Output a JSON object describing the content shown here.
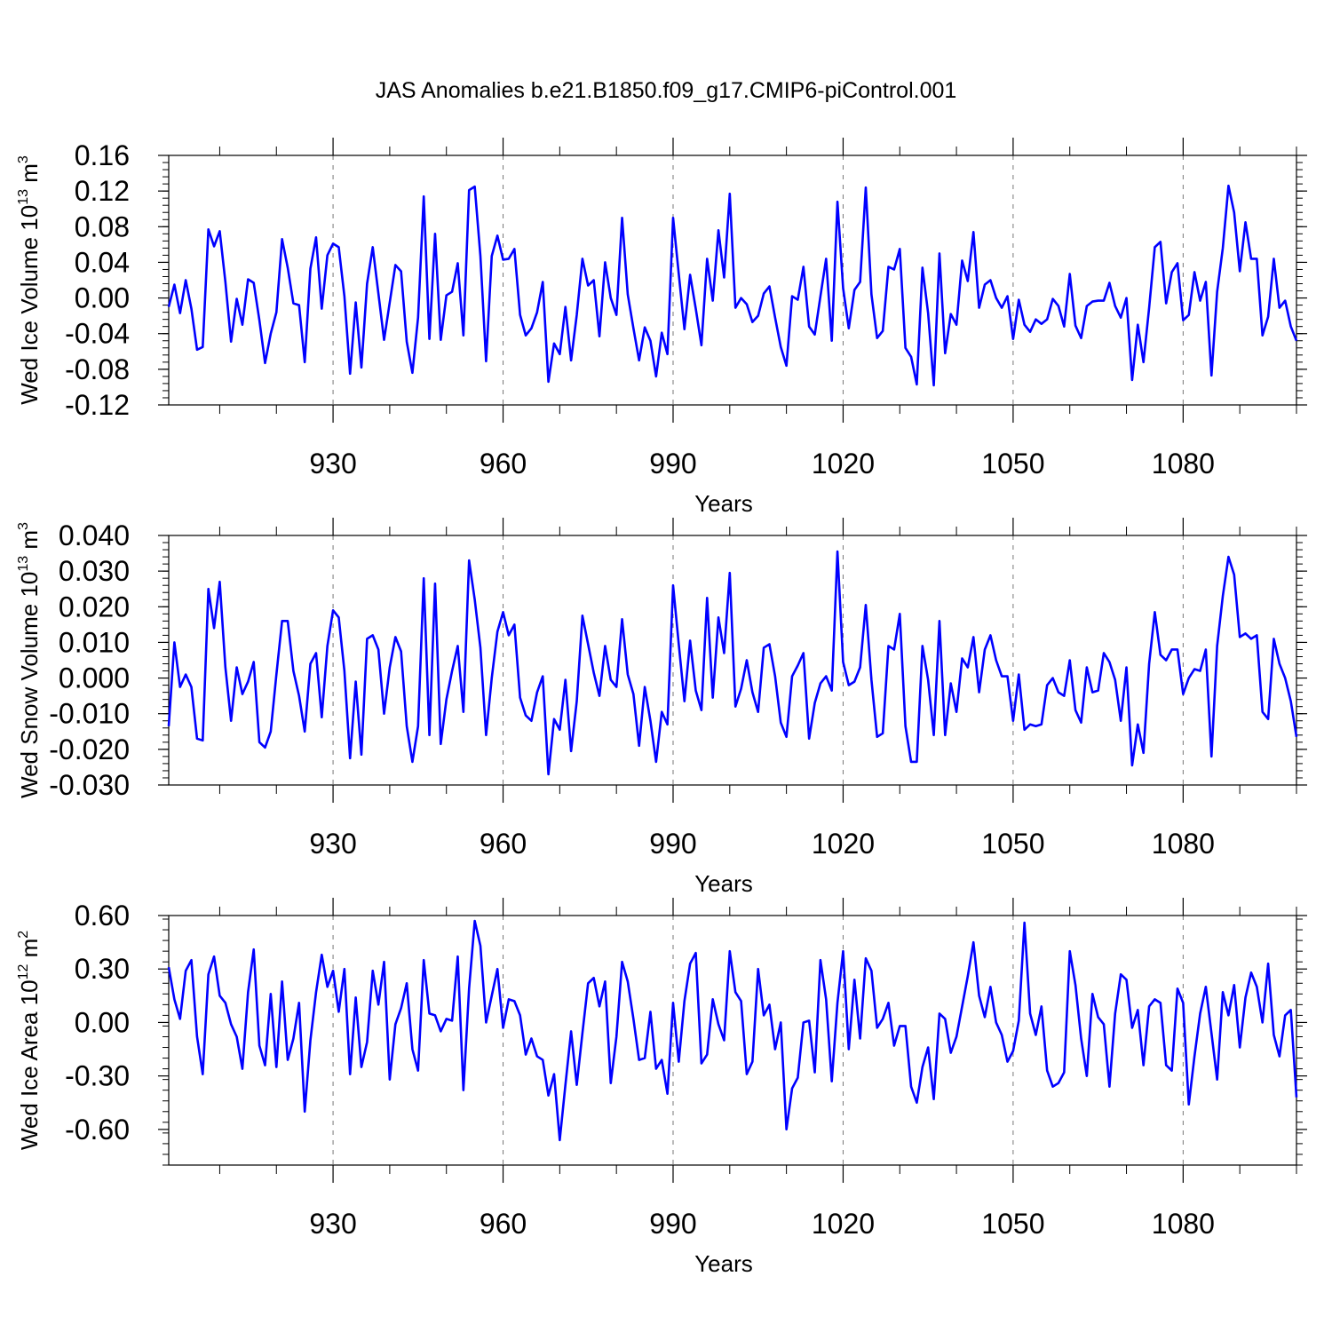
{
  "figure": {
    "title": "JAS Anomalies b.e21.B1850.f09_g17.CMIP6-piControl.001",
    "line_color": "#0000ff",
    "grid_color": "#777777"
  },
  "chart_data": [
    {
      "type": "line",
      "name": "ice-volume",
      "ylabel": "Wed Ice Volume 10",
      "ylabel_exp": "13",
      "ylabel_unit": " m",
      "ylabel_unit_exp": "3",
      "xlabel": "Years",
      "xlim": [
        901,
        1100
      ],
      "ylim": [
        -0.12,
        0.16
      ],
      "yticks": [
        -0.12,
        -0.08,
        -0.04,
        0.0,
        0.04,
        0.08,
        0.12,
        0.16
      ],
      "ytick_labels": [
        "-0.12",
        "-0.08",
        "-0.04",
        "0.00",
        "0.04",
        "0.08",
        "0.12",
        "0.16"
      ],
      "xticks": [
        930,
        960,
        990,
        1020,
        1050,
        1080
      ],
      "xtick_labels": [
        "930",
        "960",
        "990",
        "1020",
        "1050",
        "1080"
      ],
      "x_start": 901,
      "values": [
        -0.01,
        0.015,
        -0.017,
        0.02,
        -0.012,
        -0.058,
        -0.055,
        0.077,
        0.058,
        0.075,
        0.018,
        -0.049,
        -0.001,
        -0.03,
        0.021,
        0.017,
        -0.025,
        -0.073,
        -0.04,
        -0.016,
        0.066,
        0.034,
        -0.006,
        -0.008,
        -0.072,
        0.033,
        0.068,
        -0.012,
        0.048,
        0.061,
        0.057,
        0.002,
        -0.085,
        -0.005,
        -0.078,
        0.016,
        0.057,
        0.005,
        -0.047,
        -0.005,
        0.037,
        0.03,
        -0.049,
        -0.084,
        -0.022,
        0.114,
        -0.046,
        0.072,
        -0.047,
        0.003,
        0.007,
        0.039,
        -0.042,
        0.121,
        0.125,
        0.047,
        -0.071,
        0.047,
        0.07,
        0.043,
        0.044,
        0.055,
        -0.019,
        -0.042,
        -0.034,
        -0.016,
        0.018,
        -0.094,
        -0.051,
        -0.063,
        -0.01,
        -0.07,
        -0.019,
        0.044,
        0.014,
        0.02,
        -0.043,
        0.04,
        0.0,
        -0.019,
        0.09,
        0.004,
        -0.034,
        -0.07,
        -0.033,
        -0.048,
        -0.088,
        -0.039,
        -0.063,
        0.09,
        0.027,
        -0.035,
        0.026,
        -0.012,
        -0.053,
        0.044,
        -0.003,
        0.076,
        0.023,
        0.117,
        -0.011,
        0.0,
        -0.007,
        -0.027,
        -0.02,
        0.005,
        0.013,
        -0.022,
        -0.055,
        -0.076,
        0.002,
        -0.002,
        0.035,
        -0.032,
        -0.041,
        0.002,
        0.044,
        -0.048,
        0.108,
        0.011,
        -0.034,
        0.009,
        0.018,
        0.124,
        0.004,
        -0.045,
        -0.037,
        0.035,
        0.032,
        0.055,
        -0.056,
        -0.066,
        -0.097,
        0.034,
        -0.017,
        -0.098,
        0.05,
        -0.062,
        -0.018,
        -0.03,
        0.042,
        0.019,
        0.074,
        -0.011,
        0.015,
        0.02,
        0.0,
        -0.011,
        0.002,
        -0.046,
        -0.002,
        -0.03,
        -0.038,
        -0.024,
        -0.029,
        -0.024,
        -0.001,
        -0.009,
        -0.032,
        0.027,
        -0.031,
        -0.045,
        -0.009,
        -0.004,
        -0.003,
        -0.003,
        0.017,
        -0.009,
        -0.022,
        0.0,
        -0.092,
        -0.03,
        -0.072,
        -0.011,
        0.057,
        0.063,
        -0.006,
        0.029,
        0.039,
        -0.025,
        -0.019,
        0.029,
        -0.003,
        0.018,
        -0.087,
        0.007,
        0.056,
        0.126,
        0.096,
        0.03,
        0.085,
        0.044,
        0.044,
        -0.042,
        -0.021,
        0.044,
        -0.011,
        -0.003,
        -0.032,
        -0.048
      ]
    },
    {
      "type": "line",
      "name": "snow-volume",
      "ylabel": "Wed Snow Volume 10",
      "ylabel_exp": "13",
      "ylabel_unit": " m",
      "ylabel_unit_exp": "3",
      "xlabel": "Years",
      "xlim": [
        901,
        1100
      ],
      "ylim": [
        -0.03,
        0.04
      ],
      "yticks": [
        -0.03,
        -0.02,
        -0.01,
        0.0,
        0.01,
        0.02,
        0.03,
        0.04
      ],
      "ytick_labels": [
        "-0.030",
        "-0.020",
        "-0.010",
        "0.000",
        "0.010",
        "0.020",
        "0.030",
        "0.040"
      ],
      "xticks": [
        930,
        960,
        990,
        1020,
        1050,
        1080
      ],
      "xtick_labels": [
        "930",
        "960",
        "990",
        "1020",
        "1050",
        "1080"
      ],
      "x_start": 901,
      "values": [
        -0.0135,
        0.01,
        -0.0025,
        0.001,
        -0.0025,
        -0.017,
        -0.0175,
        0.025,
        0.014,
        0.027,
        0.003,
        -0.012,
        0.003,
        -0.0045,
        -0.001,
        0.0045,
        -0.018,
        -0.0195,
        -0.015,
        0.001,
        0.016,
        0.016,
        0.002,
        -0.005,
        -0.015,
        0.004,
        0.007,
        -0.011,
        0.009,
        0.019,
        0.017,
        0.002,
        -0.0225,
        -0.001,
        -0.0215,
        0.011,
        0.012,
        0.008,
        -0.01,
        0.003,
        0.0115,
        0.0075,
        -0.0135,
        -0.0235,
        -0.0135,
        0.028,
        -0.016,
        0.0265,
        -0.0185,
        -0.006,
        0.002,
        0.009,
        -0.0095,
        0.033,
        0.022,
        0.0085,
        -0.016,
        0.0,
        0.013,
        0.0185,
        0.012,
        0.015,
        -0.0055,
        -0.0105,
        -0.012,
        -0.004,
        0.0005,
        -0.027,
        -0.0115,
        -0.0145,
        -0.0005,
        -0.0205,
        -0.0065,
        0.0175,
        0.0095,
        0.0015,
        -0.005,
        0.009,
        -0.0005,
        -0.0025,
        0.0165,
        0.001,
        -0.0045,
        -0.019,
        -0.0025,
        -0.012,
        -0.0235,
        -0.0095,
        -0.013,
        0.026,
        0.0095,
        -0.0065,
        0.0105,
        -0.0035,
        -0.009,
        0.0225,
        -0.0055,
        0.017,
        0.007,
        0.0295,
        -0.008,
        -0.003,
        0.005,
        -0.004,
        -0.0095,
        0.0085,
        0.0095,
        0.0005,
        -0.0125,
        -0.0165,
        0.0005,
        0.0035,
        0.007,
        -0.017,
        -0.007,
        -0.0015,
        0.0005,
        -0.0035,
        0.0355,
        0.0045,
        -0.002,
        -0.001,
        0.003,
        0.0205,
        -0.0005,
        -0.0165,
        -0.0155,
        0.009,
        0.008,
        0.018,
        -0.0135,
        -0.0235,
        -0.0235,
        0.009,
        -0.0005,
        -0.016,
        0.016,
        -0.016,
        -0.0015,
        -0.0095,
        0.0055,
        0.003,
        0.0115,
        -0.004,
        0.008,
        0.012,
        0.005,
        0.0005,
        0.0005,
        -0.012,
        0.001,
        -0.0145,
        -0.013,
        -0.0135,
        -0.013,
        -0.002,
        0.0,
        -0.004,
        -0.005,
        0.005,
        -0.009,
        -0.0125,
        0.003,
        -0.004,
        -0.0035,
        0.007,
        0.0045,
        -0.0005,
        -0.012,
        0.003,
        -0.0245,
        -0.013,
        -0.021,
        0.004,
        0.0185,
        0.0065,
        0.005,
        0.008,
        0.008,
        -0.0045,
        0.0,
        0.0025,
        0.002,
        0.008,
        -0.022,
        0.009,
        0.023,
        0.034,
        0.029,
        0.0115,
        0.0125,
        0.011,
        0.012,
        -0.0095,
        -0.0115,
        0.011,
        0.004,
        0.0,
        -0.0065,
        -0.0165
      ]
    },
    {
      "type": "line",
      "name": "ice-area",
      "ylabel": "Wed Ice Area 10",
      "ylabel_exp": "12",
      "ylabel_unit": " m",
      "ylabel_unit_exp": "2",
      "xlabel": "Years",
      "xlim": [
        901,
        1100
      ],
      "ylim": [
        -0.8,
        0.6
      ],
      "yticks": [
        -0.6,
        -0.3,
        0.0,
        0.3,
        0.6
      ],
      "ytick_labels": [
        "-0.60",
        "-0.30",
        "0.00",
        "0.30",
        "0.60"
      ],
      "xticks": [
        930,
        960,
        990,
        1020,
        1050,
        1080
      ],
      "xtick_labels": [
        "930",
        "960",
        "990",
        "1020",
        "1050",
        "1080"
      ],
      "x_start": 901,
      "values": [
        0.31,
        0.13,
        0.02,
        0.29,
        0.35,
        -0.08,
        -0.29,
        0.27,
        0.37,
        0.15,
        0.11,
        -0.01,
        -0.08,
        -0.26,
        0.17,
        0.41,
        -0.13,
        -0.24,
        0.16,
        -0.25,
        0.23,
        -0.21,
        -0.09,
        0.11,
        -0.5,
        -0.1,
        0.17,
        0.38,
        0.2,
        0.29,
        0.06,
        0.3,
        -0.29,
        0.14,
        -0.25,
        -0.11,
        0.29,
        0.1,
        0.34,
        -0.32,
        -0.01,
        0.08,
        0.22,
        -0.15,
        -0.27,
        0.35,
        0.05,
        0.04,
        -0.05,
        0.02,
        0.01,
        0.37,
        -0.38,
        0.19,
        0.57,
        0.43,
        0.0,
        0.15,
        0.3,
        -0.03,
        0.13,
        0.12,
        0.04,
        -0.18,
        -0.09,
        -0.19,
        -0.21,
        -0.41,
        -0.29,
        -0.66,
        -0.35,
        -0.05,
        -0.35,
        -0.06,
        0.22,
        0.25,
        0.09,
        0.23,
        -0.34,
        -0.08,
        0.34,
        0.23,
        0.02,
        -0.21,
        -0.2,
        0.06,
        -0.26,
        -0.21,
        -0.4,
        0.11,
        -0.22,
        0.12,
        0.33,
        0.39,
        -0.23,
        -0.18,
        0.13,
        -0.01,
        -0.1,
        0.4,
        0.17,
        0.12,
        -0.29,
        -0.22,
        0.3,
        0.04,
        0.1,
        -0.15,
        0.0,
        -0.6,
        -0.37,
        -0.31,
        0.0,
        0.01,
        -0.28,
        0.35,
        0.13,
        -0.33,
        0.11,
        0.4,
        -0.15,
        0.24,
        -0.09,
        0.36,
        0.29,
        -0.03,
        0.02,
        0.11,
        -0.13,
        -0.02,
        -0.02,
        -0.36,
        -0.45,
        -0.25,
        -0.14,
        -0.43,
        0.05,
        0.02,
        -0.17,
        -0.08,
        0.09,
        0.26,
        0.45,
        0.15,
        0.03,
        0.2,
        0.0,
        -0.07,
        -0.22,
        -0.16,
        0.01,
        0.56,
        0.05,
        -0.07,
        0.09,
        -0.27,
        -0.36,
        -0.34,
        -0.28,
        0.4,
        0.21,
        -0.09,
        -0.3,
        0.16,
        0.03,
        -0.01,
        -0.36,
        0.05,
        0.27,
        0.24,
        -0.03,
        0.07,
        -0.24,
        0.09,
        0.13,
        0.11,
        -0.24,
        -0.27,
        0.19,
        0.11,
        -0.46,
        -0.19,
        0.05,
        0.2,
        -0.06,
        -0.32,
        0.17,
        0.04,
        0.21,
        -0.14,
        0.14,
        0.28,
        0.2,
        0.0,
        0.33,
        -0.07,
        -0.19,
        0.04,
        0.07,
        -0.42
      ]
    }
  ]
}
